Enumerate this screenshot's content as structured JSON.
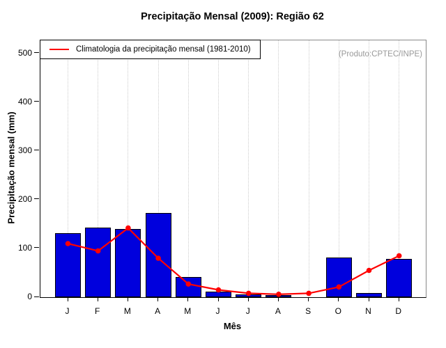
{
  "title": "Precipitação Mensal (2009): Região 62",
  "annotations": {
    "producer": "(Produto:CPTEC/INPE)"
  },
  "legend": {
    "label": "Climatologia da precipitação mensal (1981-2010)"
  },
  "axes": {
    "xlabel": "Mês",
    "ylabel": "Precipitação mensal (mm)",
    "yticks": [
      0,
      100,
      200,
      300,
      400,
      500
    ],
    "months": [
      "J",
      "F",
      "M",
      "A",
      "M",
      "J",
      "J",
      "A",
      "S",
      "O",
      "N",
      "D"
    ]
  },
  "colors": {
    "bar": "#0000dd",
    "bar_border": "#000000",
    "line": "#ff0000",
    "grid": "#cccccc",
    "watermark": "#999999",
    "frame": "#888888",
    "axis": "#000000"
  },
  "chart_data": {
    "type": "bar",
    "categories": [
      "J",
      "F",
      "M",
      "A",
      "M",
      "J",
      "J",
      "A",
      "S",
      "O",
      "N",
      "D"
    ],
    "series": [
      {
        "name": "Precipitação mensal 2009",
        "type": "bar",
        "color": "#0000dd",
        "values": [
          132,
          143,
          140,
          173,
          42,
          12,
          6,
          5,
          0,
          81,
          8,
          78
        ]
      },
      {
        "name": "Climatologia da precipitação mensal (1981-2010)",
        "type": "line",
        "color": "#ff0000",
        "values": [
          110,
          95,
          142,
          80,
          27,
          15,
          8,
          6,
          8,
          21,
          55,
          85
        ]
      }
    ],
    "title": "Precipitação Mensal (2009): Região 62",
    "xlabel": "Mês",
    "ylabel": "Precipitação mensal (mm)",
    "ylim": [
      0,
      527
    ],
    "yticks": [
      0,
      100,
      200,
      300,
      400,
      500
    ],
    "grid": "vertical-dotted",
    "legend_position": "top-left"
  }
}
